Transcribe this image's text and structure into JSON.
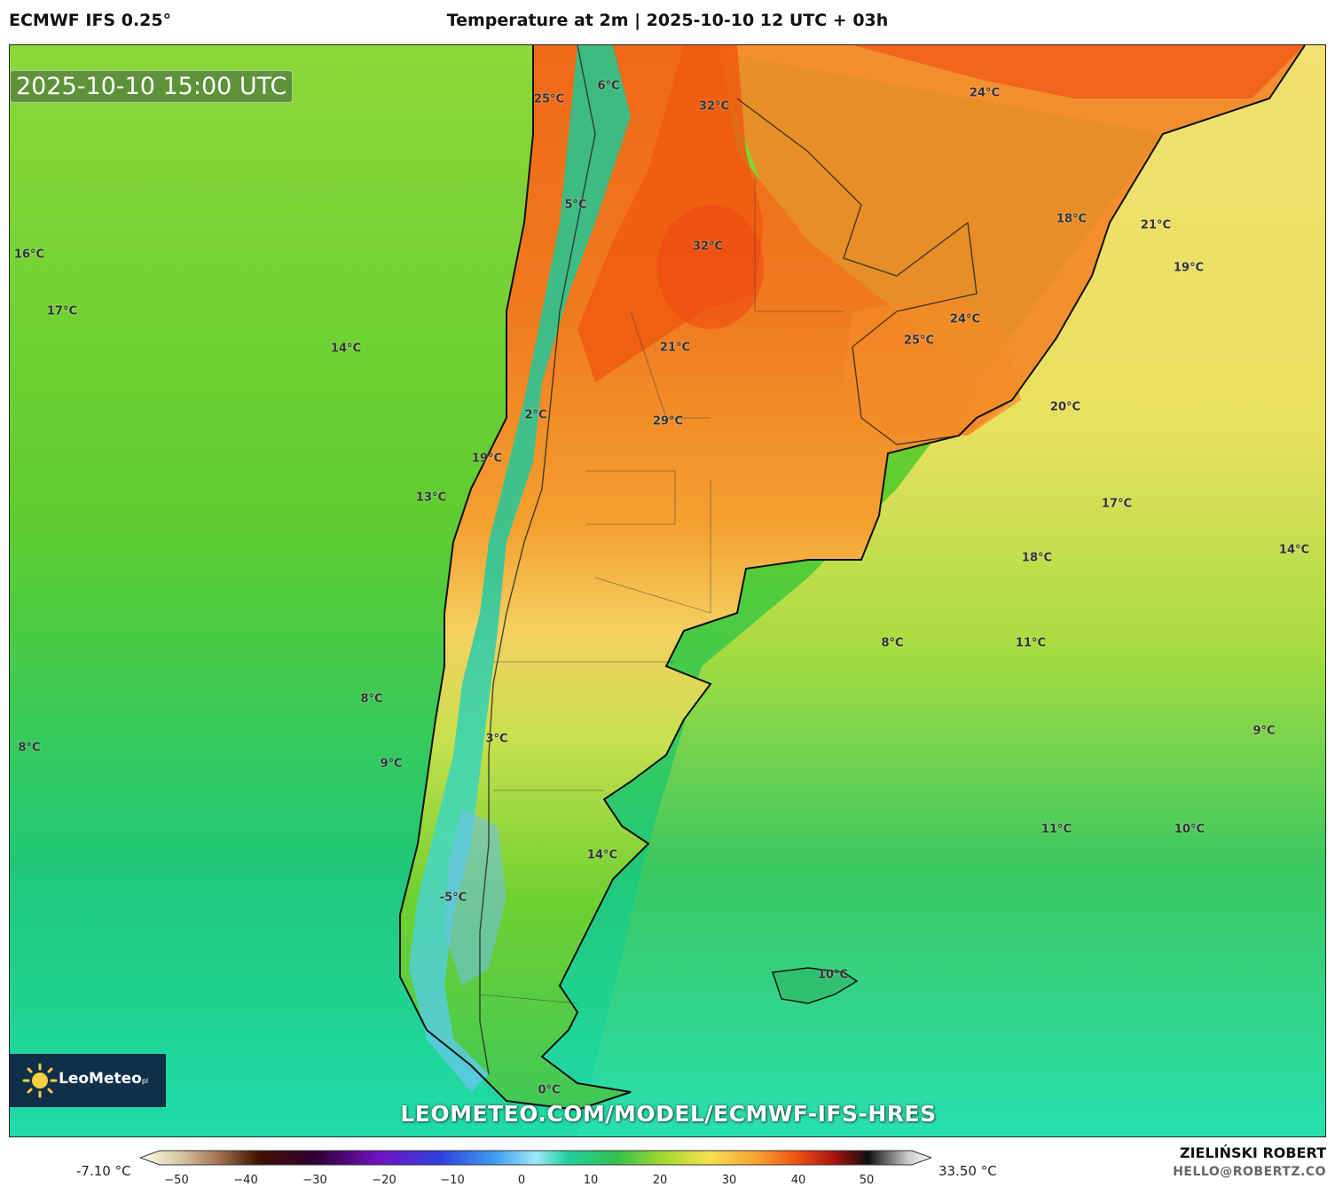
{
  "header": {
    "model": "ECMWF IFS 0.25°",
    "title": "Temperature at 2m | 2025-10-10 12 UTC + 03h"
  },
  "map": {
    "valid_time": "2025-10-10 15:00 UTC",
    "url_watermark": "LEOMETEO.COM/MODEL/ECMWF-IFS-HRES",
    "logo_text": "LeoMeteo",
    "logo_suffix": "pl",
    "temperature_labels": [
      {
        "text": "6°C"
      },
      {
        "text": "25°C"
      },
      {
        "text": "32°C"
      },
      {
        "text": "24°C"
      },
      {
        "text": "5°C"
      },
      {
        "text": "32°C"
      },
      {
        "text": "18°C"
      },
      {
        "text": "21°C"
      },
      {
        "text": "19°C"
      },
      {
        "text": "16°C"
      },
      {
        "text": "17°C"
      },
      {
        "text": "14°C"
      },
      {
        "text": "21°C"
      },
      {
        "text": "24°C"
      },
      {
        "text": "25°C"
      },
      {
        "text": "2°C"
      },
      {
        "text": "29°C"
      },
      {
        "text": "20°C"
      },
      {
        "text": "19°C"
      },
      {
        "text": "13°C"
      },
      {
        "text": "17°C"
      },
      {
        "text": "18°C"
      },
      {
        "text": "14°C"
      },
      {
        "text": "8°C"
      },
      {
        "text": "11°C"
      },
      {
        "text": "8°C"
      },
      {
        "text": "8°C"
      },
      {
        "text": "3°C"
      },
      {
        "text": "9°C"
      },
      {
        "text": "9°C"
      },
      {
        "text": "11°C"
      },
      {
        "text": "10°C"
      },
      {
        "text": "14°C"
      },
      {
        "text": "-5°C"
      },
      {
        "text": "10°C"
      },
      {
        "text": "0°C"
      }
    ],
    "colors": {
      "warm": "#f07818",
      "hot": "#f05a10",
      "mid_yellow": "#f5d060",
      "ocean_green": "#5cd030",
      "cool_teal": "#20d8a0",
      "cold_blue": "#60c0f0"
    }
  },
  "colorbar": {
    "min_label": "-7.10 °C",
    "max_label": "33.50 °C",
    "ticks": [
      "−50",
      "−40",
      "−30",
      "−20",
      "−10",
      "0",
      "10",
      "20",
      "30",
      "40",
      "50"
    ]
  },
  "footer": {
    "author": "ZIELIŃSKI ROBERT",
    "email": "HELLO@ROBERTZ.CO"
  }
}
